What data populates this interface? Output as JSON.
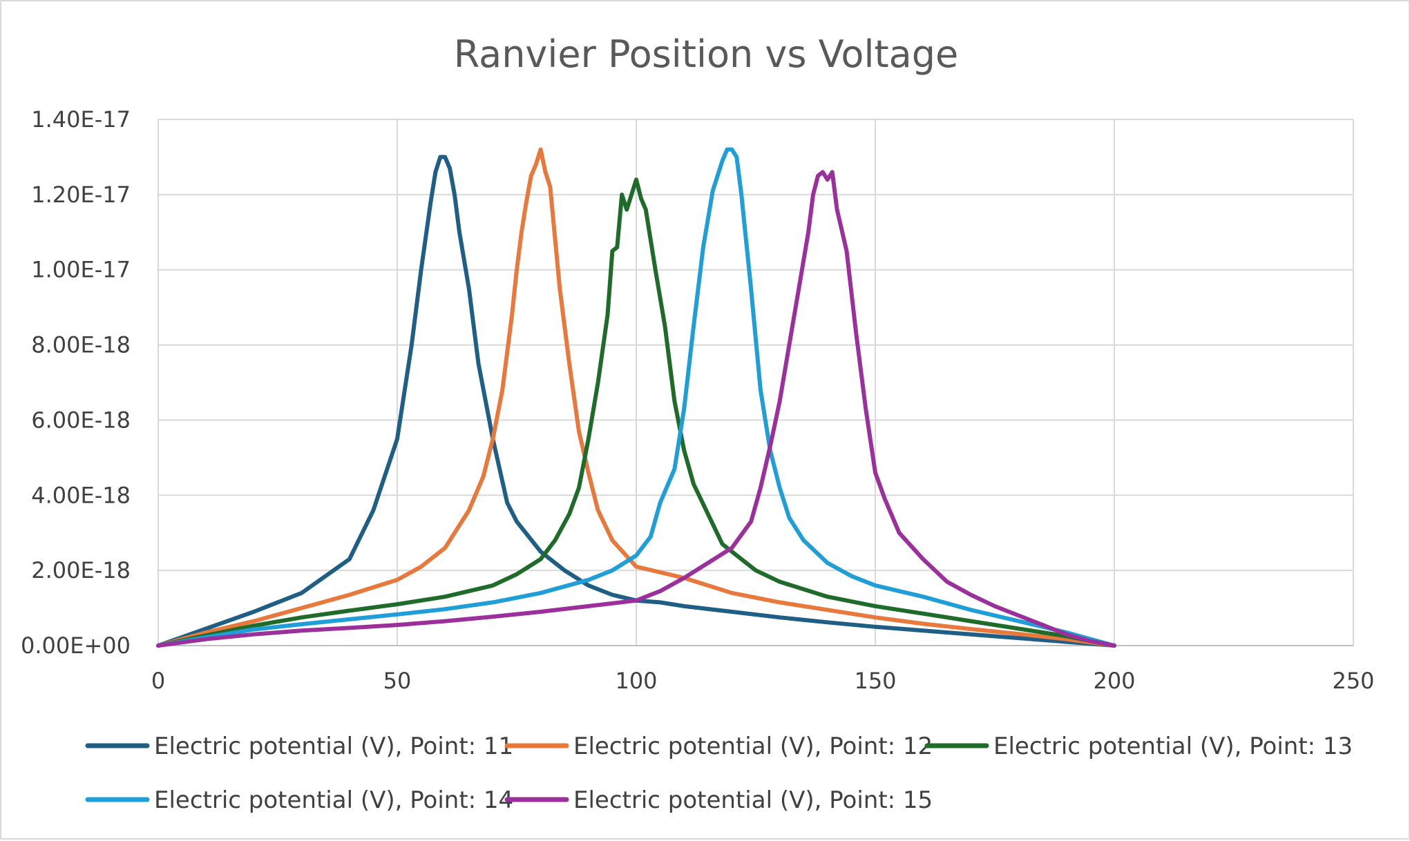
{
  "chart_data": {
    "type": "line",
    "title": "Ranvier Position vs Voltage",
    "xlabel": "",
    "ylabel": "",
    "xlim": [
      0,
      250
    ],
    "ylim": [
      0,
      1.4e-17
    ],
    "x_ticks": [
      {
        "value": 0,
        "label": "0"
      },
      {
        "value": 50,
        "label": "50"
      },
      {
        "value": 100,
        "label": "100"
      },
      {
        "value": 150,
        "label": "150"
      },
      {
        "value": 200,
        "label": "200"
      },
      {
        "value": 250,
        "label": "250"
      }
    ],
    "y_ticks": [
      {
        "value": 0,
        "label": "0.00E+00"
      },
      {
        "value": 2e-18,
        "label": "2.00E-18"
      },
      {
        "value": 4e-18,
        "label": "4.00E-18"
      },
      {
        "value": 6e-18,
        "label": "6.00E-18"
      },
      {
        "value": 8e-18,
        "label": "8.00E-18"
      },
      {
        "value": 1e-17,
        "label": "1.00E-17"
      },
      {
        "value": 1.2e-17,
        "label": "1.20E-17"
      },
      {
        "value": 1.4e-17,
        "label": "1.40E-17"
      }
    ],
    "grid": true,
    "legend_position": "bottom",
    "series": [
      {
        "name": "Electric potential (V), Point: 11",
        "color": "#1f5f86",
        "x": [
          0,
          10,
          20,
          30,
          40,
          45,
          50,
          53,
          55,
          57,
          58,
          59,
          60,
          61,
          62,
          63,
          65,
          67,
          70,
          73,
          75,
          80,
          85,
          90,
          95,
          100,
          105,
          110,
          120,
          130,
          140,
          150,
          160,
          170,
          180,
          190,
          200
        ],
        "y": [
          0,
          4.5e-19,
          9e-19,
          1.4e-18,
          2.3e-18,
          3.6e-18,
          5.5e-18,
          8e-18,
          1e-17,
          1.18e-17,
          1.26e-17,
          1.3e-17,
          1.3e-17,
          1.27e-17,
          1.2e-17,
          1.1e-17,
          9.5e-18,
          7.5e-18,
          5.5e-18,
          3.8e-18,
          3.3e-18,
          2.5e-18,
          2e-18,
          1.6e-18,
          1.35e-18,
          1.2e-18,
          1.15e-18,
          1.05e-18,
          9e-19,
          7.5e-19,
          6.2e-19,
          5e-19,
          4e-19,
          3e-19,
          2e-19,
          1e-19,
          0
        ]
      },
      {
        "name": "Electric potential (V), Point: 12",
        "color": "#e8783b",
        "x": [
          0,
          10,
          20,
          30,
          40,
          50,
          55,
          60,
          65,
          68,
          70,
          72,
          74,
          75,
          76,
          77,
          78,
          79,
          80,
          81,
          82,
          84,
          86,
          88,
          90,
          92,
          95,
          100,
          110,
          120,
          130,
          140,
          150,
          160,
          170,
          180,
          190,
          200
        ],
        "y": [
          0,
          3.5e-19,
          6.5e-19,
          1e-18,
          1.35e-18,
          1.75e-18,
          2.1e-18,
          2.6e-18,
          3.6e-18,
          4.5e-18,
          5.5e-18,
          6.8e-18,
          8.8e-18,
          1e-17,
          1.1e-17,
          1.18e-17,
          1.25e-17,
          1.28e-17,
          1.32e-17,
          1.26e-17,
          1.22e-17,
          9.5e-18,
          7.5e-18,
          5.7e-18,
          4.6e-18,
          3.6e-18,
          2.8e-18,
          2.1e-18,
          1.8e-18,
          1.4e-18,
          1.15e-18,
          9.5e-19,
          7.5e-19,
          5.8e-19,
          4.4e-19,
          3.1e-19,
          1.7e-19,
          0
        ]
      },
      {
        "name": "Electric potential (V), Point: 13",
        "color": "#1e6b2a",
        "x": [
          0,
          10,
          20,
          30,
          40,
          50,
          60,
          70,
          75,
          80,
          83,
          86,
          88,
          90,
          92,
          94,
          95,
          96,
          97,
          98,
          99,
          100,
          101,
          102,
          104,
          106,
          108,
          110,
          112,
          115,
          118,
          120,
          125,
          130,
          140,
          150,
          160,
          170,
          180,
          190,
          200
        ],
        "y": [
          0,
          2.7e-19,
          5.3e-19,
          7.5e-19,
          9.3e-19,
          1.1e-18,
          1.3e-18,
          1.6e-18,
          1.9e-18,
          2.3e-18,
          2.8e-18,
          3.5e-18,
          4.2e-18,
          5.5e-18,
          7e-18,
          8.8e-18,
          1.05e-17,
          1.06e-17,
          1.2e-17,
          1.16e-17,
          1.2e-17,
          1.24e-17,
          1.19e-17,
          1.16e-17,
          1e-17,
          8.5e-18,
          6.5e-18,
          5.2e-18,
          4.3e-18,
          3.5e-18,
          2.7e-18,
          2.5e-18,
          2e-18,
          1.7e-18,
          1.3e-18,
          1.05e-18,
          8.5e-19,
          6.5e-19,
          4.5e-19,
          2.5e-19,
          0
        ]
      },
      {
        "name": "Electric potential (V), Point: 14",
        "color": "#1f9ed8",
        "x": [
          0,
          10,
          20,
          30,
          40,
          50,
          60,
          70,
          80,
          90,
          95,
          100,
          103,
          105,
          108,
          110,
          112,
          114,
          116,
          118,
          119,
          120,
          121,
          122,
          124,
          126,
          128,
          130,
          132,
          135,
          140,
          145,
          150,
          160,
          170,
          180,
          190,
          200
        ],
        "y": [
          0,
          2.2e-19,
          4.3e-19,
          5.7e-19,
          7e-19,
          8.3e-19,
          9.7e-19,
          1.15e-18,
          1.4e-18,
          1.75e-18,
          2e-18,
          2.4e-18,
          2.9e-18,
          3.8e-18,
          4.7e-18,
          6.3e-18,
          8.5e-18,
          1.06e-17,
          1.21e-17,
          1.29e-17,
          1.32e-17,
          1.32e-17,
          1.3e-17,
          1.2e-17,
          9.5e-18,
          6.8e-18,
          5.2e-18,
          4.2e-18,
          3.4e-18,
          2.8e-18,
          2.2e-18,
          1.85e-18,
          1.6e-18,
          1.3e-18,
          9.5e-19,
          6.5e-19,
          3.5e-19,
          0
        ]
      },
      {
        "name": "Electric potential (V), Point: 15",
        "color": "#9b2f9b",
        "x": [
          0,
          10,
          20,
          30,
          40,
          50,
          60,
          70,
          80,
          90,
          100,
          105,
          110,
          115,
          120,
          124,
          126,
          128,
          130,
          132,
          134,
          136,
          137,
          138,
          139,
          140,
          141,
          142,
          144,
          146,
          148,
          150,
          152,
          155,
          160,
          165,
          170,
          175,
          180,
          185,
          190,
          195,
          200
        ],
        "y": [
          0,
          1.7e-19,
          3e-19,
          4e-19,
          4.7e-19,
          5.5e-19,
          6.5e-19,
          7.7e-19,
          9e-19,
          1.05e-18,
          1.2e-18,
          1.45e-18,
          1.8e-18,
          2.2e-18,
          2.6e-18,
          3.3e-18,
          4.2e-18,
          5.3e-18,
          6.5e-18,
          8e-18,
          9.5e-18,
          1.1e-17,
          1.2e-17,
          1.25e-17,
          1.26e-17,
          1.24e-17,
          1.26e-17,
          1.16e-17,
          1.05e-17,
          8.3e-18,
          6.3e-18,
          4.6e-18,
          3.9e-18,
          3e-18,
          2.3e-18,
          1.7e-18,
          1.35e-18,
          1.05e-18,
          8e-19,
          5.5e-19,
          3e-19,
          1.2e-19,
          0
        ]
      }
    ]
  }
}
